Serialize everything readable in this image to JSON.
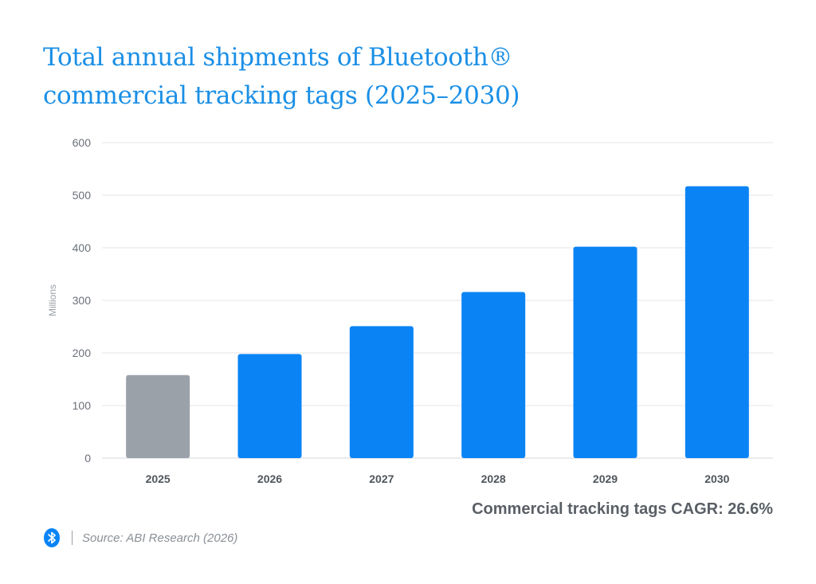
{
  "chart_data": {
    "type": "bar",
    "title_lines": [
      "Total annual shipments of Bluetooth®",
      "commercial tracking tags (2025–2030)"
    ],
    "ylabel": "Millions",
    "ylim": [
      0,
      600
    ],
    "yticks": [
      0,
      100,
      200,
      300,
      400,
      500,
      600
    ],
    "grid": true,
    "categories": [
      "2025",
      "2026",
      "2027",
      "2028",
      "2029",
      "2030"
    ],
    "values": [
      158,
      198,
      251,
      316,
      402,
      517
    ],
    "bar_colors": [
      "#9ba1a9",
      "#0a84f5",
      "#0a84f5",
      "#0a84f5",
      "#0a84f5",
      "#0a84f5"
    ]
  },
  "annotation": "Commercial tracking tags CAGR: 26.6%",
  "footer": {
    "logo_icon": "bluetooth-icon",
    "logo_color": "#0a84f5",
    "source": "Source: ABI Research (2026)"
  }
}
